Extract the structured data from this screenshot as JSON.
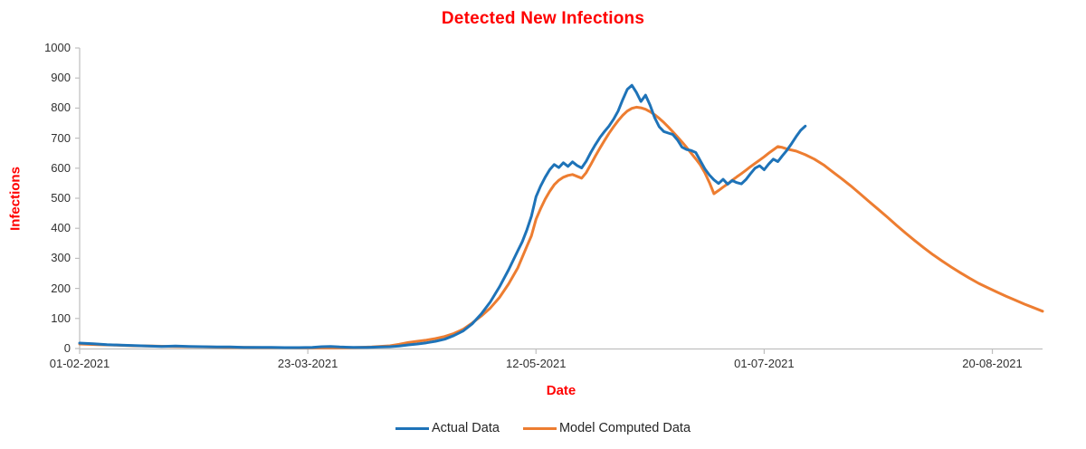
{
  "chart_data": {
    "type": "line",
    "title": "Detected New Infections",
    "xlabel": "Date",
    "ylabel": "Infections",
    "x_unit": "days since 01-02-2021",
    "xlim": [
      0,
      211
    ],
    "ylim": [
      0,
      1000
    ],
    "grid": false,
    "legend_position": "bottom-center",
    "x_ticks": [
      {
        "day": 0,
        "label": "01-02-2021"
      },
      {
        "day": 50,
        "label": "23-03-2021"
      },
      {
        "day": 100,
        "label": "12-05-2021"
      },
      {
        "day": 150,
        "label": "01-07-2021"
      },
      {
        "day": 200,
        "label": "20-08-2021"
      }
    ],
    "y_ticks": [
      0,
      100,
      200,
      300,
      400,
      500,
      600,
      700,
      800,
      900,
      1000
    ],
    "series": [
      {
        "name": "Model Computed Data",
        "color": "#ED7D31",
        "points": [
          [
            0,
            15
          ],
          [
            4,
            13
          ],
          [
            8,
            11
          ],
          [
            12,
            9
          ],
          [
            16,
            8
          ],
          [
            20,
            7
          ],
          [
            24,
            6
          ],
          [
            28,
            5
          ],
          [
            32,
            4
          ],
          [
            36,
            4
          ],
          [
            40,
            3
          ],
          [
            44,
            3
          ],
          [
            48,
            2
          ],
          [
            52,
            2
          ],
          [
            56,
            2
          ],
          [
            60,
            3
          ],
          [
            64,
            5
          ],
          [
            68,
            9
          ],
          [
            70,
            14
          ],
          [
            72,
            20
          ],
          [
            74,
            24
          ],
          [
            76,
            28
          ],
          [
            78,
            33
          ],
          [
            80,
            40
          ],
          [
            82,
            50
          ],
          [
            84,
            64
          ],
          [
            86,
            85
          ],
          [
            88,
            108
          ],
          [
            90,
            135
          ],
          [
            92,
            170
          ],
          [
            94,
            215
          ],
          [
            96,
            268
          ],
          [
            98,
            340
          ],
          [
            99,
            375
          ],
          [
            100,
            430
          ],
          [
            101,
            465
          ],
          [
            102,
            497
          ],
          [
            103,
            523
          ],
          [
            104,
            545
          ],
          [
            105,
            560
          ],
          [
            106,
            570
          ],
          [
            107,
            576
          ],
          [
            108,
            579
          ],
          [
            109,
            573
          ],
          [
            110,
            567
          ],
          [
            111,
            585
          ],
          [
            112,
            612
          ],
          [
            113,
            640
          ],
          [
            114,
            667
          ],
          [
            115,
            692
          ],
          [
            116,
            716
          ],
          [
            117,
            738
          ],
          [
            118,
            758
          ],
          [
            119,
            776
          ],
          [
            120,
            790
          ],
          [
            121,
            799
          ],
          [
            122,
            803
          ],
          [
            123,
            801
          ],
          [
            124,
            796
          ],
          [
            125,
            788
          ],
          [
            126,
            778
          ],
          [
            127,
            766
          ],
          [
            128,
            752
          ],
          [
            129,
            737
          ],
          [
            130,
            721
          ],
          [
            131,
            704
          ],
          [
            132,
            687
          ],
          [
            133,
            669
          ],
          [
            134,
            650
          ],
          [
            135,
            631
          ],
          [
            136,
            611
          ],
          [
            137,
            585
          ],
          [
            138,
            552
          ],
          [
            139,
            515
          ],
          [
            140,
            526
          ],
          [
            141,
            537
          ],
          [
            142,
            548
          ],
          [
            143,
            560
          ],
          [
            144,
            571
          ],
          [
            145,
            582
          ],
          [
            146,
            593
          ],
          [
            147,
            605
          ],
          [
            148,
            616
          ],
          [
            149,
            627
          ],
          [
            150,
            638
          ],
          [
            151,
            650
          ],
          [
            152,
            661
          ],
          [
            153,
            672
          ],
          [
            154,
            669
          ],
          [
            155,
            664
          ],
          [
            157,
            657
          ],
          [
            159,
            645
          ],
          [
            161,
            630
          ],
          [
            163,
            611
          ],
          [
            165,
            588
          ],
          [
            167,
            565
          ],
          [
            169,
            541
          ],
          [
            171,
            515
          ],
          [
            173,
            489
          ],
          [
            175,
            463
          ],
          [
            177,
            437
          ],
          [
            179,
            410
          ],
          [
            181,
            384
          ],
          [
            183,
            359
          ],
          [
            185,
            335
          ],
          [
            187,
            312
          ],
          [
            189,
            291
          ],
          [
            191,
            271
          ],
          [
            193,
            252
          ],
          [
            195,
            234
          ],
          [
            197,
            217
          ],
          [
            199,
            202
          ],
          [
            201,
            188
          ],
          [
            203,
            174
          ],
          [
            205,
            161
          ],
          [
            207,
            148
          ],
          [
            209,
            136
          ],
          [
            211,
            124
          ]
        ]
      },
      {
        "name": "Actual Data",
        "color": "#1E73B8",
        "points": [
          [
            0,
            18
          ],
          [
            3,
            16
          ],
          [
            6,
            13
          ],
          [
            9,
            11
          ],
          [
            12,
            10
          ],
          [
            15,
            8
          ],
          [
            18,
            7
          ],
          [
            21,
            8
          ],
          [
            24,
            7
          ],
          [
            27,
            6
          ],
          [
            30,
            5
          ],
          [
            33,
            5
          ],
          [
            36,
            4
          ],
          [
            39,
            4
          ],
          [
            42,
            4
          ],
          [
            45,
            3
          ],
          [
            48,
            3
          ],
          [
            51,
            4
          ],
          [
            53,
            6
          ],
          [
            55,
            7
          ],
          [
            57,
            5
          ],
          [
            60,
            4
          ],
          [
            63,
            4
          ],
          [
            66,
            5
          ],
          [
            68,
            6
          ],
          [
            70,
            8
          ],
          [
            72,
            12
          ],
          [
            74,
            15
          ],
          [
            76,
            19
          ],
          [
            78,
            24
          ],
          [
            80,
            31
          ],
          [
            82,
            43
          ],
          [
            84,
            58
          ],
          [
            86,
            82
          ],
          [
            88,
            115
          ],
          [
            90,
            155
          ],
          [
            92,
            205
          ],
          [
            94,
            262
          ],
          [
            96,
            325
          ],
          [
            97,
            355
          ],
          [
            98,
            395
          ],
          [
            99,
            440
          ],
          [
            100,
            505
          ],
          [
            101,
            540
          ],
          [
            102,
            570
          ],
          [
            103,
            595
          ],
          [
            104,
            612
          ],
          [
            105,
            602
          ],
          [
            106,
            618
          ],
          [
            107,
            606
          ],
          [
            108,
            621
          ],
          [
            109,
            609
          ],
          [
            110,
            601
          ],
          [
            111,
            623
          ],
          [
            112,
            652
          ],
          [
            113,
            678
          ],
          [
            114,
            702
          ],
          [
            115,
            722
          ],
          [
            116,
            740
          ],
          [
            117,
            763
          ],
          [
            118,
            790
          ],
          [
            119,
            828
          ],
          [
            120,
            862
          ],
          [
            121,
            876
          ],
          [
            122,
            852
          ],
          [
            123,
            822
          ],
          [
            124,
            843
          ],
          [
            125,
            810
          ],
          [
            126,
            768
          ],
          [
            127,
            738
          ],
          [
            128,
            722
          ],
          [
            129,
            717
          ],
          [
            130,
            712
          ],
          [
            131,
            694
          ],
          [
            132,
            670
          ],
          [
            133,
            662
          ],
          [
            134,
            659
          ],
          [
            135,
            652
          ],
          [
            136,
            625
          ],
          [
            137,
            598
          ],
          [
            138,
            577
          ],
          [
            139,
            561
          ],
          [
            140,
            549
          ],
          [
            141,
            563
          ],
          [
            142,
            547
          ],
          [
            143,
            559
          ],
          [
            144,
            552
          ],
          [
            145,
            548
          ],
          [
            146,
            562
          ],
          [
            147,
            582
          ],
          [
            148,
            600
          ],
          [
            149,
            608
          ],
          [
            150,
            595
          ],
          [
            151,
            614
          ],
          [
            152,
            630
          ],
          [
            153,
            622
          ],
          [
            154,
            642
          ],
          [
            155,
            660
          ],
          [
            156,
            682
          ],
          [
            157,
            705
          ],
          [
            158,
            726
          ],
          [
            159,
            740
          ]
        ]
      }
    ],
    "legend": [
      {
        "label": "Actual Data",
        "color": "#1E73B8"
      },
      {
        "label": "Model Computed Data",
        "color": "#ED7D31"
      }
    ]
  },
  "styles": {
    "title_color": "#FF0000",
    "axis_label_color": "#FF0000",
    "axis_line_color": "#BFBFBF",
    "tick_label_color": "#303030",
    "legend_text_color": "#262626"
  }
}
